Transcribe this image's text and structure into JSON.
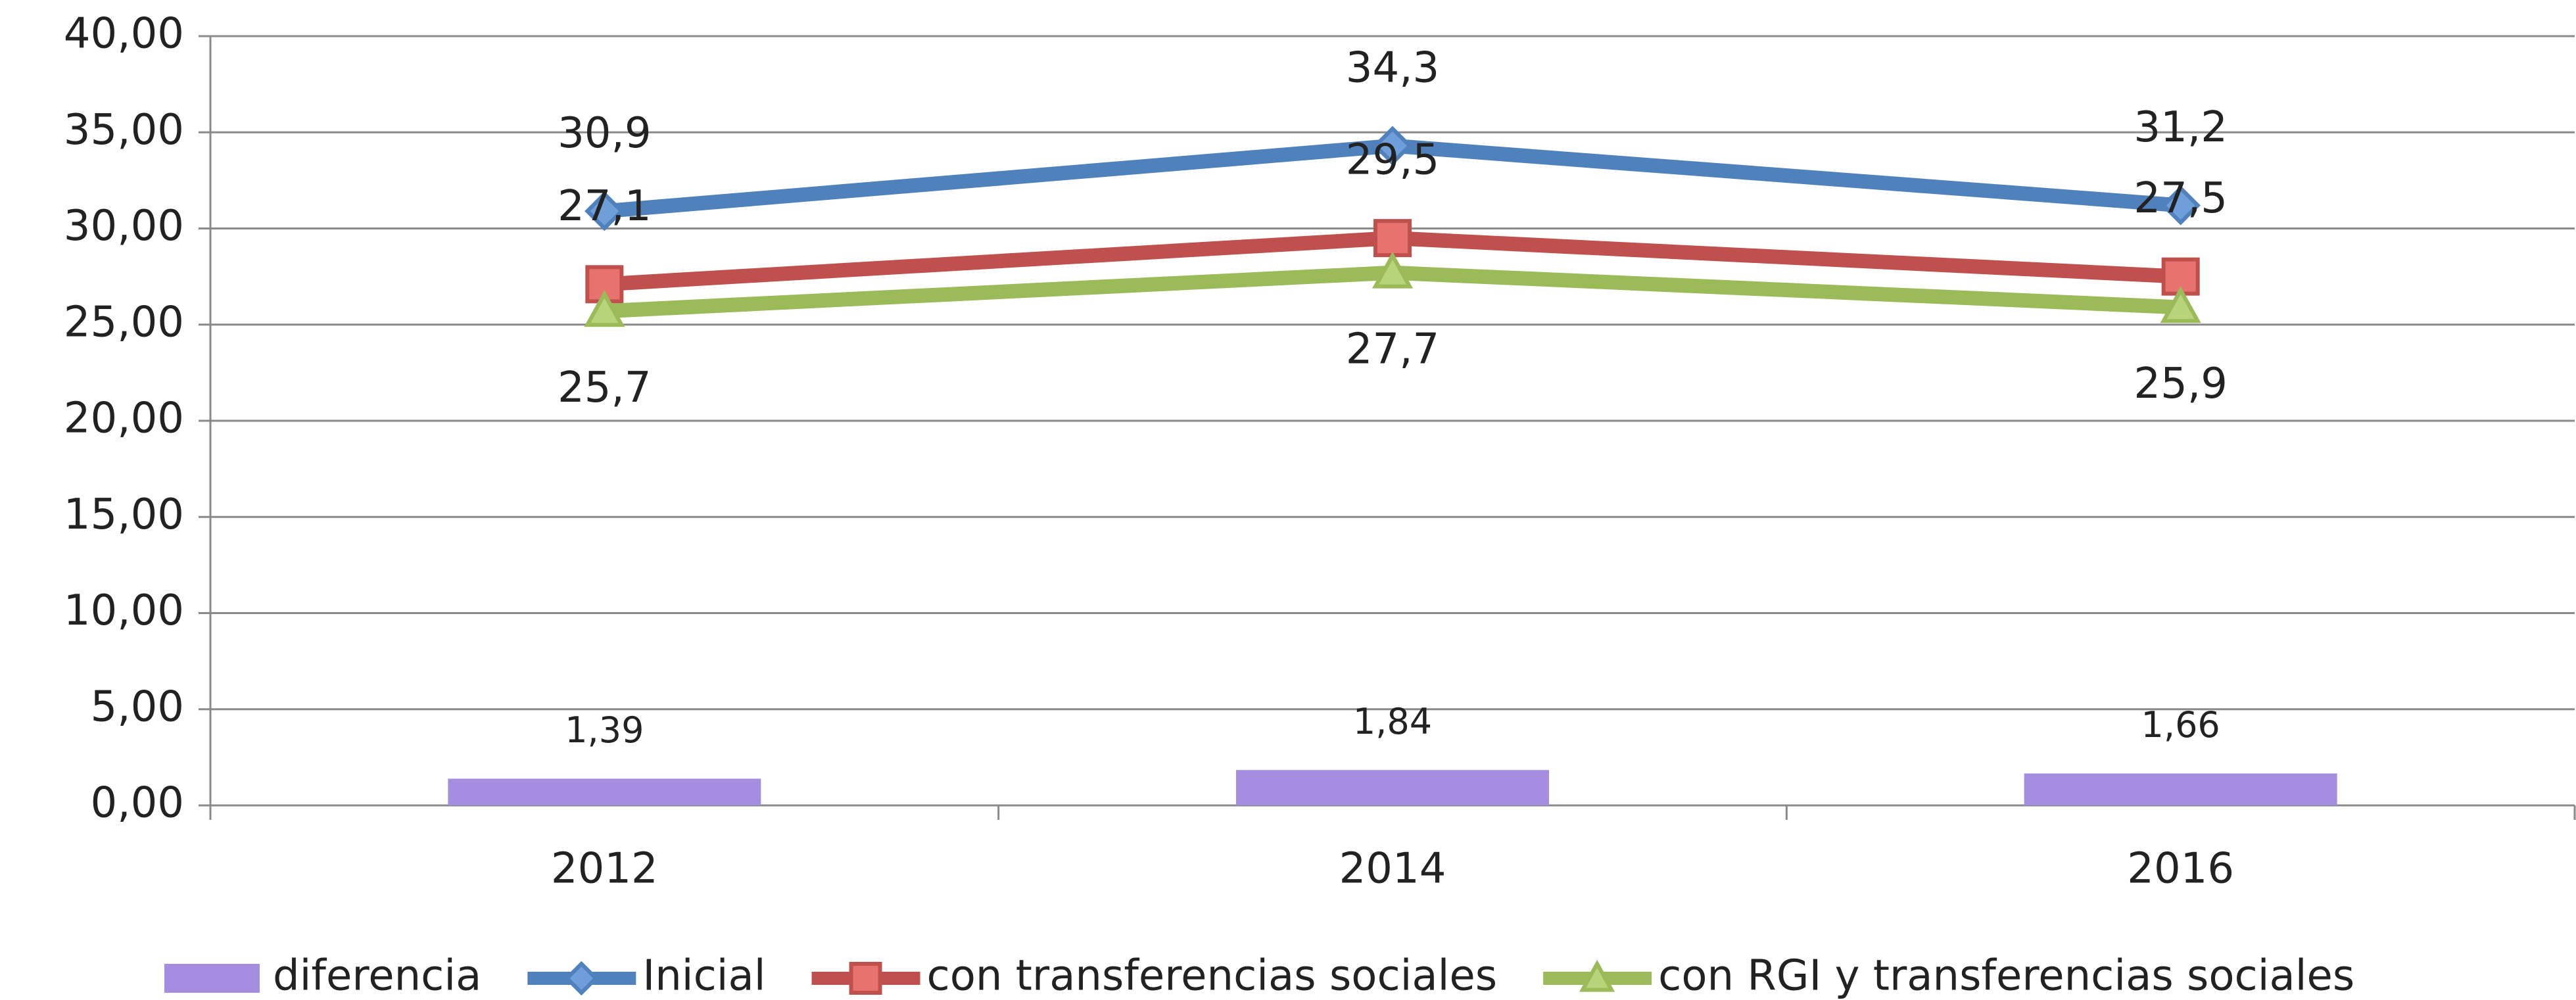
{
  "chart_data": {
    "type": "combo",
    "categories": [
      "2012",
      "2014",
      "2016"
    ],
    "series": [
      {
        "name": "diferencia",
        "type": "bar",
        "color": "#a58ee0",
        "values": [
          1.39,
          1.84,
          1.66
        ],
        "value_labels": [
          "1,39",
          "1,84",
          "1,66"
        ]
      },
      {
        "name": "Inicial",
        "type": "line",
        "marker": "diamond",
        "color": "#4f81bd",
        "values": [
          30.9,
          34.3,
          31.2
        ],
        "value_labels": [
          "30,9",
          "34,3",
          "31,2"
        ]
      },
      {
        "name": "con transferencias sociales",
        "type": "line",
        "marker": "square",
        "color": "#c0504d",
        "values": [
          27.1,
          29.5,
          27.5
        ],
        "value_labels": [
          "27,1",
          "29,5",
          "27,5"
        ]
      },
      {
        "name": "con RGI y transferencias sociales",
        "type": "line",
        "marker": "triangle",
        "color": "#9bbb59",
        "values": [
          25.7,
          27.7,
          25.9
        ],
        "value_labels": [
          "25,7",
          "27,7",
          "25,9"
        ]
      }
    ],
    "ylim": [
      0,
      40
    ],
    "yticks": [
      {
        "value": 0,
        "label": "0,00"
      },
      {
        "value": 5,
        "label": "5,00"
      },
      {
        "value": 10,
        "label": "10,00"
      },
      {
        "value": 15,
        "label": "15,00"
      },
      {
        "value": 20,
        "label": "20,00"
      },
      {
        "value": 25,
        "label": "25,00"
      },
      {
        "value": 30,
        "label": "30,00"
      },
      {
        "value": 35,
        "label": "35,00"
      },
      {
        "value": 40,
        "label": "40,00"
      }
    ],
    "grid": true,
    "legend": "bottom"
  }
}
